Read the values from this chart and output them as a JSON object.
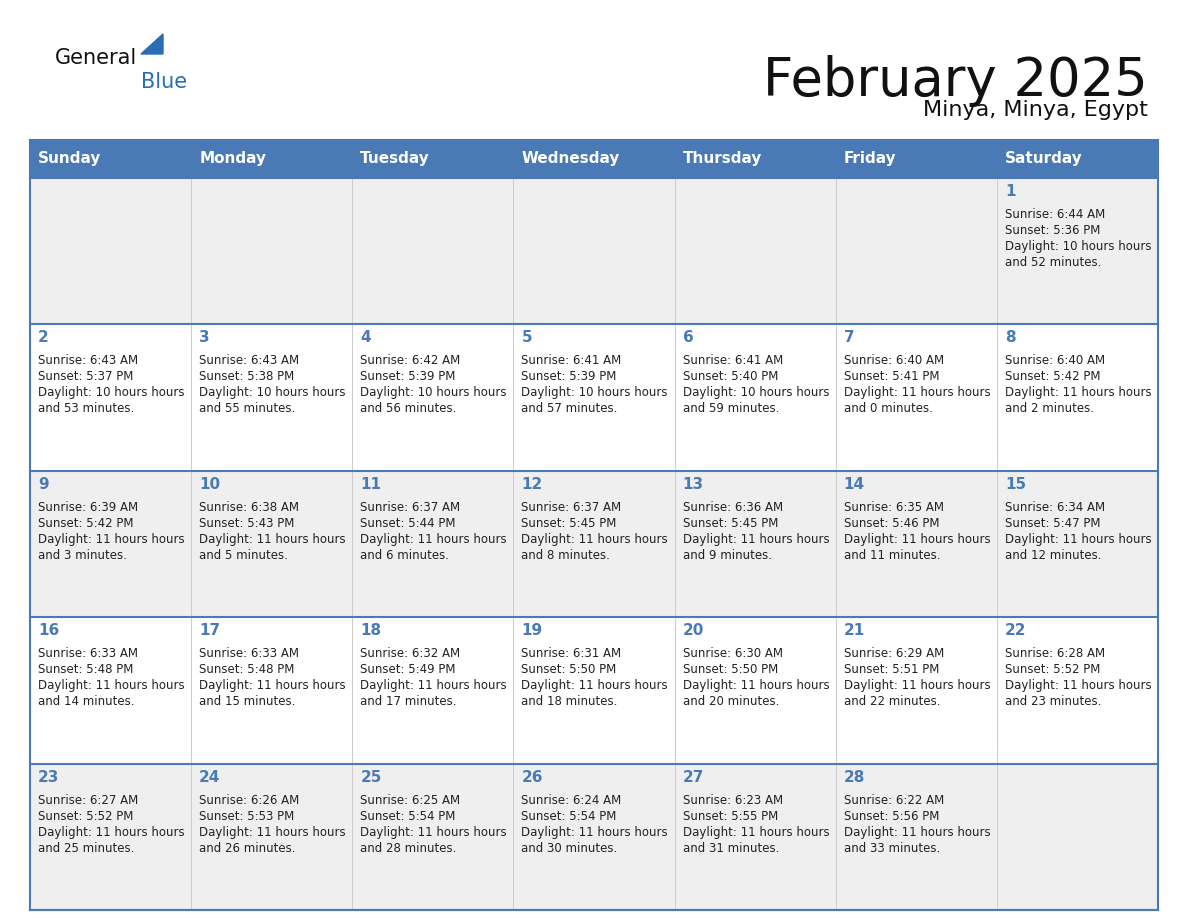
{
  "title": "February 2025",
  "subtitle": "Minya, Minya, Egypt",
  "days_of_week": [
    "Sunday",
    "Monday",
    "Tuesday",
    "Wednesday",
    "Thursday",
    "Friday",
    "Saturday"
  ],
  "header_bg_color": "#4a7ab5",
  "header_text_color": "#ffffff",
  "cell_bg_light": "#efefef",
  "cell_bg_white": "#ffffff",
  "day_number_color": "#4a7ab5",
  "info_text_color": "#222222",
  "border_color": "#4a7ab5",
  "col_border_color": "#cccccc",
  "title_color": "#111111",
  "subtitle_color": "#111111",
  "logo_general_color": "#111111",
  "logo_blue_color": "#2a6db5",
  "calendar_data": [
    [
      null,
      null,
      null,
      null,
      null,
      null,
      {
        "day": 1,
        "sunrise": "6:44 AM",
        "sunset": "5:36 PM",
        "daylight": "10 hours and 52 minutes"
      }
    ],
    [
      {
        "day": 2,
        "sunrise": "6:43 AM",
        "sunset": "5:37 PM",
        "daylight": "10 hours and 53 minutes"
      },
      {
        "day": 3,
        "sunrise": "6:43 AM",
        "sunset": "5:38 PM",
        "daylight": "10 hours and 55 minutes"
      },
      {
        "day": 4,
        "sunrise": "6:42 AM",
        "sunset": "5:39 PM",
        "daylight": "10 hours and 56 minutes"
      },
      {
        "day": 5,
        "sunrise": "6:41 AM",
        "sunset": "5:39 PM",
        "daylight": "10 hours and 57 minutes"
      },
      {
        "day": 6,
        "sunrise": "6:41 AM",
        "sunset": "5:40 PM",
        "daylight": "10 hours and 59 minutes"
      },
      {
        "day": 7,
        "sunrise": "6:40 AM",
        "sunset": "5:41 PM",
        "daylight": "11 hours and 0 minutes"
      },
      {
        "day": 8,
        "sunrise": "6:40 AM",
        "sunset": "5:42 PM",
        "daylight": "11 hours and 2 minutes"
      }
    ],
    [
      {
        "day": 9,
        "sunrise": "6:39 AM",
        "sunset": "5:42 PM",
        "daylight": "11 hours and 3 minutes"
      },
      {
        "day": 10,
        "sunrise": "6:38 AM",
        "sunset": "5:43 PM",
        "daylight": "11 hours and 5 minutes"
      },
      {
        "day": 11,
        "sunrise": "6:37 AM",
        "sunset": "5:44 PM",
        "daylight": "11 hours and 6 minutes"
      },
      {
        "day": 12,
        "sunrise": "6:37 AM",
        "sunset": "5:45 PM",
        "daylight": "11 hours and 8 minutes"
      },
      {
        "day": 13,
        "sunrise": "6:36 AM",
        "sunset": "5:45 PM",
        "daylight": "11 hours and 9 minutes"
      },
      {
        "day": 14,
        "sunrise": "6:35 AM",
        "sunset": "5:46 PM",
        "daylight": "11 hours and 11 minutes"
      },
      {
        "day": 15,
        "sunrise": "6:34 AM",
        "sunset": "5:47 PM",
        "daylight": "11 hours and 12 minutes"
      }
    ],
    [
      {
        "day": 16,
        "sunrise": "6:33 AM",
        "sunset": "5:48 PM",
        "daylight": "11 hours and 14 minutes"
      },
      {
        "day": 17,
        "sunrise": "6:33 AM",
        "sunset": "5:48 PM",
        "daylight": "11 hours and 15 minutes"
      },
      {
        "day": 18,
        "sunrise": "6:32 AM",
        "sunset": "5:49 PM",
        "daylight": "11 hours and 17 minutes"
      },
      {
        "day": 19,
        "sunrise": "6:31 AM",
        "sunset": "5:50 PM",
        "daylight": "11 hours and 18 minutes"
      },
      {
        "day": 20,
        "sunrise": "6:30 AM",
        "sunset": "5:50 PM",
        "daylight": "11 hours and 20 minutes"
      },
      {
        "day": 21,
        "sunrise": "6:29 AM",
        "sunset": "5:51 PM",
        "daylight": "11 hours and 22 minutes"
      },
      {
        "day": 22,
        "sunrise": "6:28 AM",
        "sunset": "5:52 PM",
        "daylight": "11 hours and 23 minutes"
      }
    ],
    [
      {
        "day": 23,
        "sunrise": "6:27 AM",
        "sunset": "5:52 PM",
        "daylight": "11 hours and 25 minutes"
      },
      {
        "day": 24,
        "sunrise": "6:26 AM",
        "sunset": "5:53 PM",
        "daylight": "11 hours and 26 minutes"
      },
      {
        "day": 25,
        "sunrise": "6:25 AM",
        "sunset": "5:54 PM",
        "daylight": "11 hours and 28 minutes"
      },
      {
        "day": 26,
        "sunrise": "6:24 AM",
        "sunset": "5:54 PM",
        "daylight": "11 hours and 30 minutes"
      },
      {
        "day": 27,
        "sunrise": "6:23 AM",
        "sunset": "5:55 PM",
        "daylight": "11 hours and 31 minutes"
      },
      {
        "day": 28,
        "sunrise": "6:22 AM",
        "sunset": "5:56 PM",
        "daylight": "11 hours and 33 minutes"
      },
      null
    ]
  ]
}
